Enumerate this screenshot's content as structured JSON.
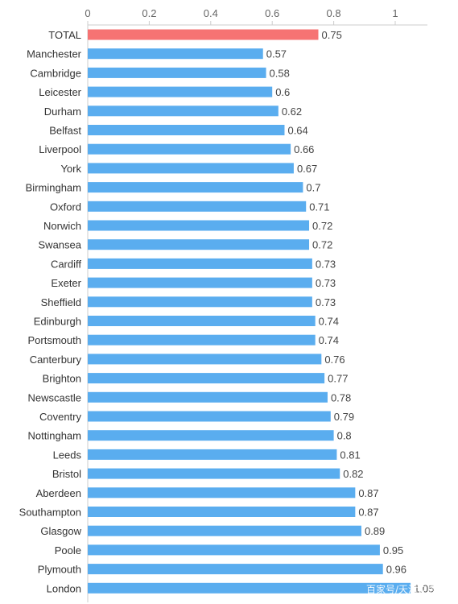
{
  "chart_data": {
    "type": "bar",
    "orientation": "horizontal",
    "categories": [
      "TOTAL",
      "Manchester",
      "Cambridge",
      "Leicester",
      "Durham",
      "Belfast",
      "Liverpool",
      "York",
      "Birmingham",
      "Oxford",
      "Norwich",
      "Swansea",
      "Cardiff",
      "Exeter",
      "Sheffield",
      "Edinburgh",
      "Portsmouth",
      "Canterbury",
      "Brighton",
      "Newscastle",
      "Coventry",
      "Nottingham",
      "Leeds",
      "Bristol",
      "Aberdeen",
      "Southampton",
      "Glasgow",
      "Poole",
      "Plymouth",
      "London"
    ],
    "values": [
      0.75,
      0.57,
      0.58,
      0.6,
      0.62,
      0.64,
      0.66,
      0.67,
      0.7,
      0.71,
      0.72,
      0.72,
      0.73,
      0.73,
      0.73,
      0.74,
      0.74,
      0.76,
      0.77,
      0.78,
      0.79,
      0.8,
      0.81,
      0.82,
      0.87,
      0.87,
      0.89,
      0.95,
      0.96,
      1.05
    ],
    "value_labels": [
      "0.75",
      "0.57",
      "0.58",
      "0.6",
      "0.62",
      "0.64",
      "0.66",
      "0.67",
      "0.7",
      "0.71",
      "0.72",
      "0.72",
      "0.73",
      "0.73",
      "0.73",
      "0.74",
      "0.74",
      "0.76",
      "0.77",
      "0.78",
      "0.79",
      "0.8",
      "0.81",
      "0.82",
      "0.87",
      "0.87",
      "0.89",
      "0.95",
      "0.96",
      "1.05"
    ],
    "xaxis": {
      "position": "top",
      "ticks": [
        0,
        0.2,
        0.4,
        0.6,
        0.8,
        1
      ],
      "tick_labels": [
        "0",
        "0.2",
        "0.4",
        "0.6",
        "0.8",
        "1"
      ],
      "range": [
        0,
        1.1
      ]
    },
    "grid": false,
    "colors": {
      "highlight": "#F67373",
      "bar": "#5AADEF",
      "axis": "#CCCCCC"
    },
    "title": "",
    "xlabel": "",
    "ylabel": ""
  },
  "watermark": "百家号/天津立思"
}
